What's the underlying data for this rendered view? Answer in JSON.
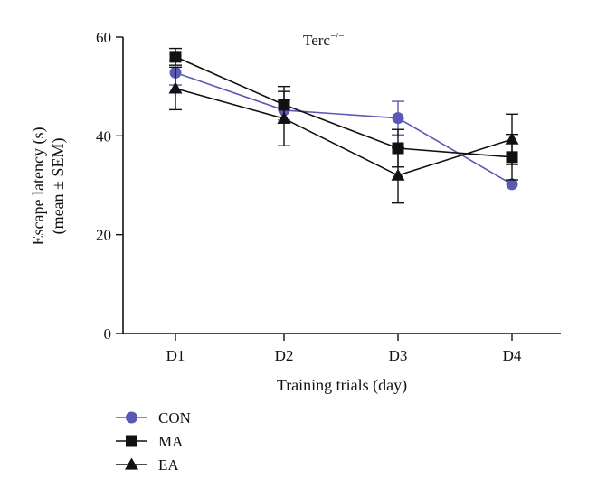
{
  "chart_data": {
    "type": "line",
    "categories": [
      "D1",
      "D2",
      "D3",
      "D4"
    ],
    "xlabel": "Training trials (day)",
    "ylabel_line1": "Escape latency (s)",
    "ylabel_line2": "(mean ± SEM)",
    "ylim": [
      0,
      60
    ],
    "yticks": [
      0,
      20,
      40,
      60
    ],
    "annotation": {
      "base": "Terc",
      "sup": "−/−"
    },
    "grid": false,
    "legend_position": "bottom-left",
    "series": [
      {
        "name": "CON",
        "marker": "circle",
        "color": "#5a5ab4",
        "values": [
          52.8,
          45.2,
          43.6,
          30.2
        ],
        "sem": [
          2.5,
          2.0,
          3.4,
          0
        ]
      },
      {
        "name": "MA",
        "marker": "square",
        "color": "#111111",
        "values": [
          56.0,
          46.3,
          37.5,
          35.7
        ],
        "sem": [
          1.7,
          3.7,
          3.8,
          4.6
        ]
      },
      {
        "name": "EA",
        "marker": "triangle",
        "color": "#111111",
        "values": [
          49.6,
          43.5,
          32.0,
          39.3
        ],
        "sem": [
          4.3,
          5.5,
          5.6,
          5.1
        ]
      }
    ]
  }
}
